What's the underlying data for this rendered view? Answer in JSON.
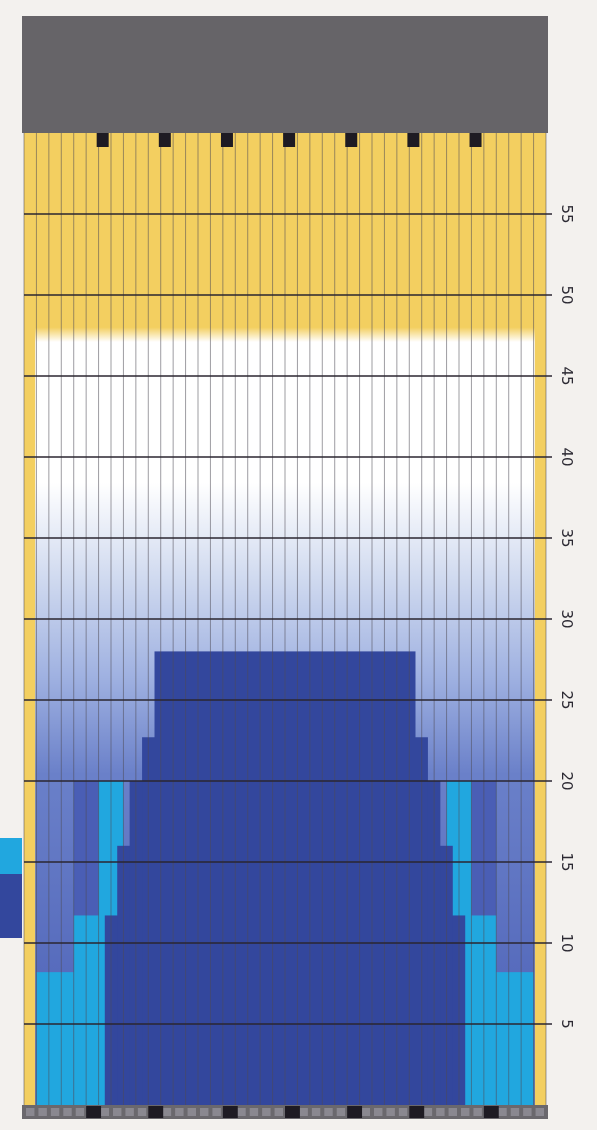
{
  "chart_data": {
    "type": "heatmap",
    "y_tick_labels": [
      "5",
      "10",
      "15",
      "20",
      "25",
      "30",
      "35",
      "40",
      "45",
      "50",
      "55"
    ],
    "y_range": [
      0,
      60
    ],
    "columns": 42,
    "colors": {
      "top_band": "#666468",
      "bottom_band": "#6a686d",
      "gold": "#f3cf60",
      "white": "#ffffff",
      "light_blue": "#cfd9ef",
      "mid_blue": "#7f94d2",
      "deep_periwinkle": "#4a5eb5",
      "cyan": "#21a7df",
      "navy": "#33479d",
      "row_line": "#2b2630",
      "col_line": "#4f4a55",
      "marker": "#1e1b23"
    }
  }
}
